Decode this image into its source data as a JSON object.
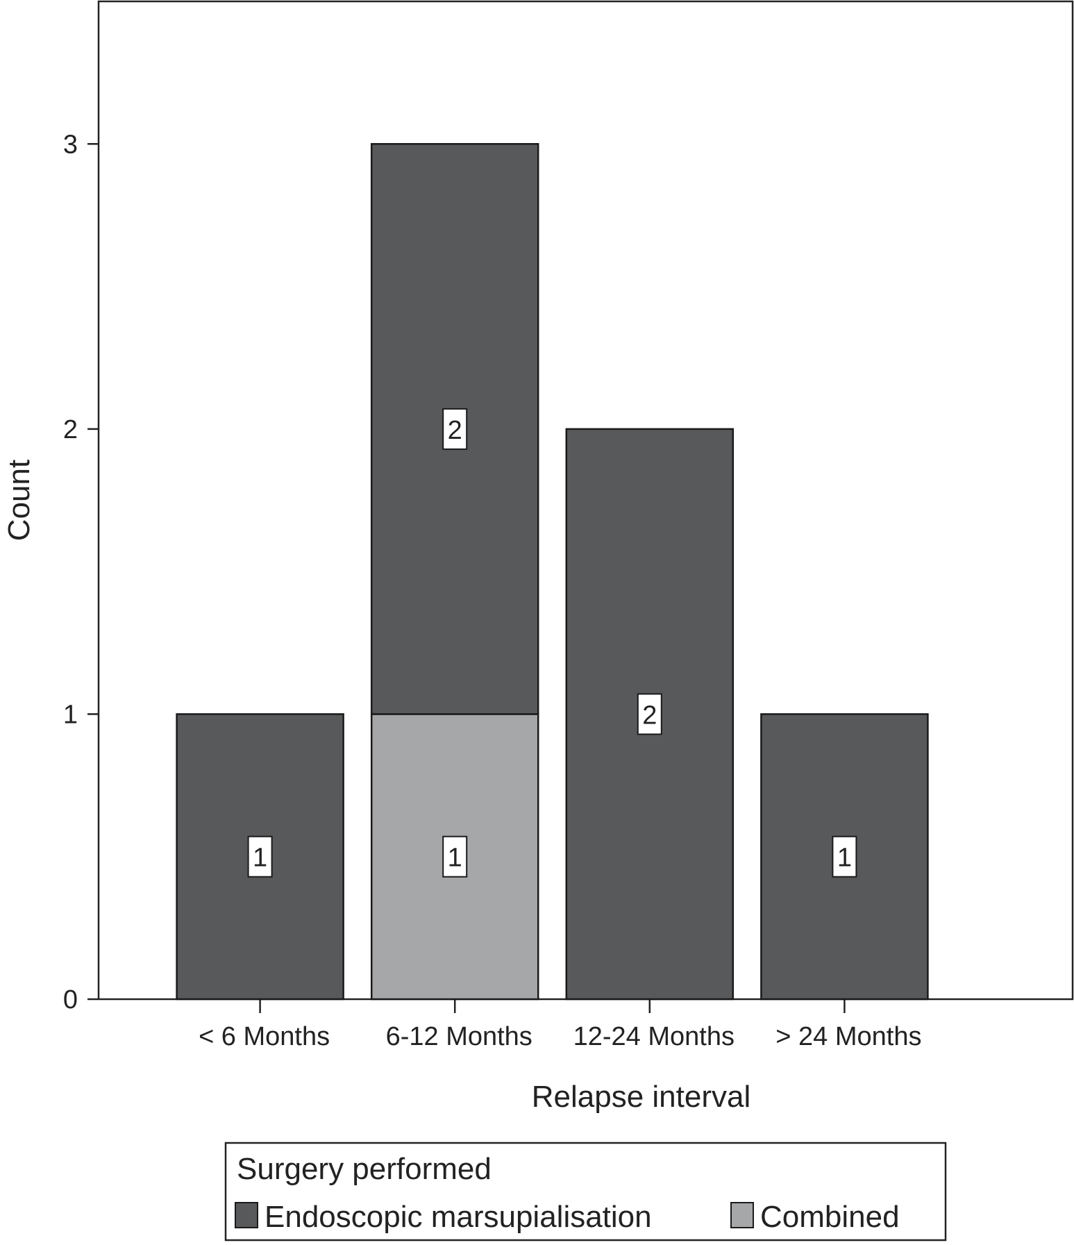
{
  "chart_data": {
    "type": "bar",
    "stacked": true,
    "categories": [
      "< 6 Months",
      "6-12 Months",
      "12-24 Months",
      "> 24 Months"
    ],
    "series": [
      {
        "name": "Combined",
        "values": [
          0,
          1,
          0,
          0
        ],
        "color": "#a6a7a9"
      },
      {
        "name": "Endoscopic marsupialisation",
        "values": [
          1,
          2,
          2,
          1
        ],
        "color": "#58595b"
      }
    ],
    "xlabel": "Relapse interval",
    "ylabel": "Count",
    "ylim": [
      0,
      3.5
    ],
    "yticks": [
      0,
      1,
      2,
      3
    ],
    "grid": false,
    "data_labels": true,
    "legend": {
      "title": "Surgery performed",
      "placement": "bottom",
      "items": [
        {
          "label": "Endoscopic marsupialisation",
          "color": "#58595b"
        },
        {
          "label": "Combined",
          "color": "#a6a7a9"
        }
      ]
    }
  }
}
